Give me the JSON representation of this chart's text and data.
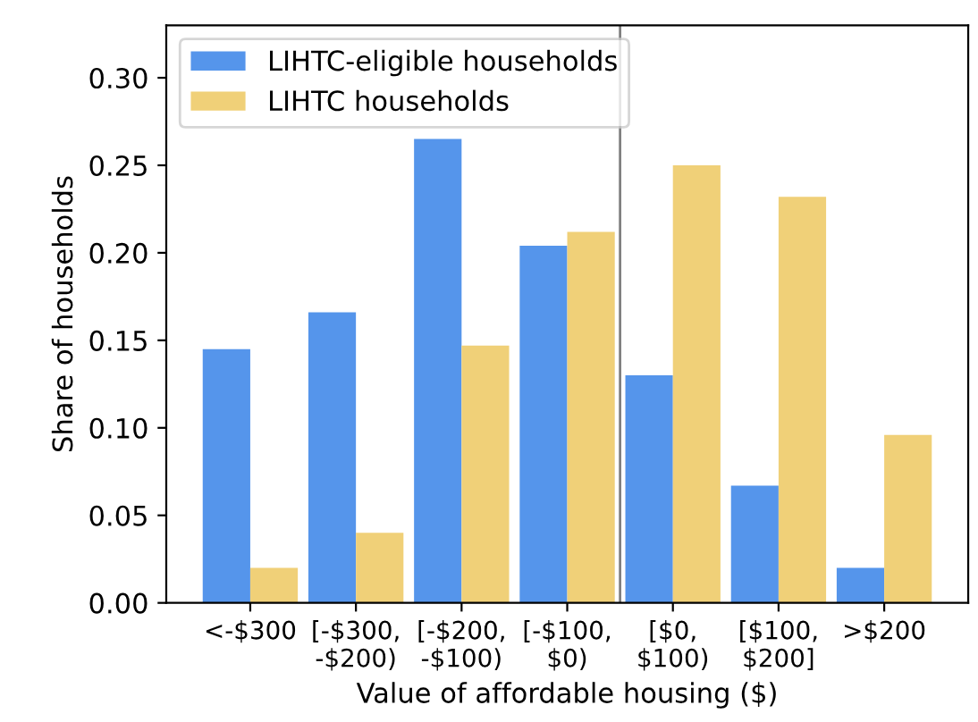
{
  "chart_data": {
    "type": "bar",
    "xlabel": "Value of affordable housing ($)",
    "ylabel": "Share of households",
    "categories": [
      "<-$300",
      "[-$300,\n-$200)",
      "[-$200,\n-$100)",
      "[-$100,\n$0)",
      "[$0,\n$100)",
      "[$100,\n$200]",
      ">$200"
    ],
    "series": [
      {
        "name": "LIHTC-eligible households",
        "color": "#5595eb",
        "values": [
          0.145,
          0.166,
          0.265,
          0.204,
          0.13,
          0.067,
          0.02
        ]
      },
      {
        "name": "LIHTC households",
        "color": "#f0d078",
        "values": [
          0.02,
          0.04,
          0.147,
          0.212,
          0.25,
          0.232,
          0.096
        ]
      }
    ],
    "ylim": [
      0,
      0.33
    ],
    "yticks": [
      {
        "value": 0,
        "label": "0.00"
      },
      {
        "value": 0.05,
        "label": "0.05"
      },
      {
        "value": 0.1,
        "label": "0.10"
      },
      {
        "value": 0.15,
        "label": "0.15"
      },
      {
        "value": 0.2,
        "label": "0.20"
      },
      {
        "value": 0.25,
        "label": "0.25"
      },
      {
        "value": 0.3,
        "label": "0.30"
      }
    ],
    "legend": "top left",
    "grid": false
  }
}
